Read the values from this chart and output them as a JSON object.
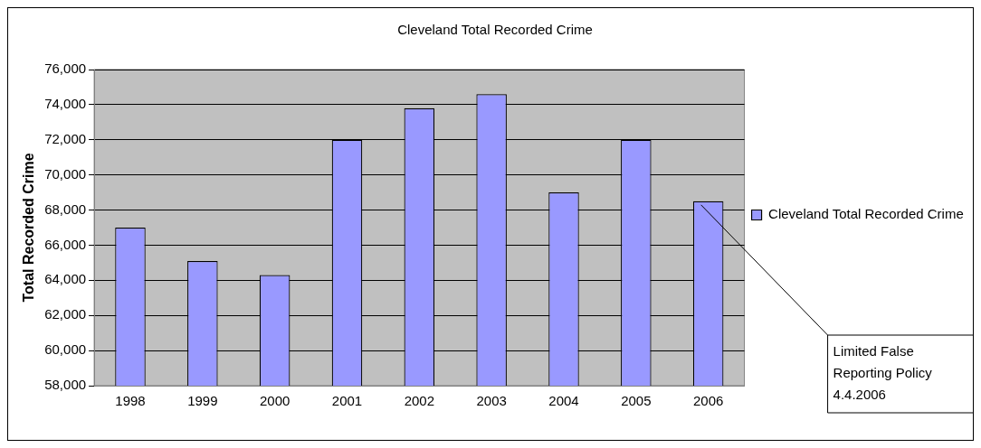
{
  "chart_data": {
    "type": "bar",
    "title": "Cleveland Total Recorded Crime",
    "ylabel": "Total Recorded Crime",
    "categories": [
      "1998",
      "1999",
      "2000",
      "2001",
      "2002",
      "2003",
      "2004",
      "2005",
      "2006"
    ],
    "series": [
      {
        "name": "Cleveland Total Recorded Crime",
        "color": "#9999ff",
        "values": [
          67000,
          65100,
          64300,
          72000,
          73800,
          74600,
          69000,
          72000,
          68500
        ]
      }
    ],
    "ylim": [
      58000,
      76000
    ],
    "yticks": [
      {
        "value": 58000,
        "label": "58,000"
      },
      {
        "value": 60000,
        "label": "60,000"
      },
      {
        "value": 62000,
        "label": "62,000"
      },
      {
        "value": 64000,
        "label": "64,000"
      },
      {
        "value": 66000,
        "label": "66,000"
      },
      {
        "value": 68000,
        "label": "68,000"
      },
      {
        "value": 70000,
        "label": "70,000"
      },
      {
        "value": 72000,
        "label": "72,000"
      },
      {
        "value": 74000,
        "label": "74,000"
      },
      {
        "value": 76000,
        "label": "76,000"
      }
    ],
    "grid": "y",
    "legend": "right",
    "annotations": [
      {
        "text": "Limited False Reporting Policy 4.4.2006",
        "x": "2006",
        "y": 68500
      }
    ]
  }
}
